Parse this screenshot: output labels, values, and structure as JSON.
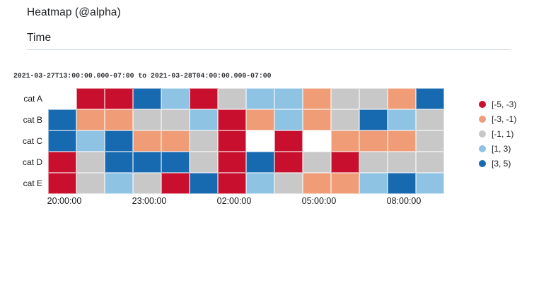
{
  "header": {
    "title": "Heatmap (@alpha)",
    "panel_title": "Time"
  },
  "chart_data": {
    "type": "heatmap",
    "title": "Time",
    "time_range_label": "2021-03-27T13:00:00.000-07:00 to 2021-03-28T04:00:00.000-07:00",
    "y_categories": [
      "cat A",
      "cat B",
      "cat C",
      "cat D",
      "cat E"
    ],
    "x_tick_labels": [
      "20:00:00",
      "23:00:00",
      "02:00:00",
      "05:00:00",
      "08:00:00"
    ],
    "x_tick_columns": [
      0,
      3,
      6,
      9,
      12
    ],
    "column_count": 14,
    "legend_position": "right",
    "legend": [
      {
        "label": "[-5, -3)",
        "color": "#c8102e"
      },
      {
        "label": "[-3, -1)",
        "color": "#f09d77"
      },
      {
        "label": "[-1, 1)",
        "color": "#c8c8c8"
      },
      {
        "label": "[1, 3)",
        "color": "#8fc3e4"
      },
      {
        "label": "[3, 5)",
        "color": "#1769b0"
      }
    ],
    "cells": [
      [
        null,
        0,
        0,
        4,
        3,
        0,
        2,
        3,
        3,
        1,
        2,
        2,
        1,
        4
      ],
      [
        4,
        1,
        1,
        2,
        2,
        3,
        0,
        1,
        3,
        1,
        2,
        4,
        3,
        2
      ],
      [
        4,
        3,
        4,
        1,
        1,
        2,
        0,
        null,
        0,
        null,
        1,
        1,
        1,
        2
      ],
      [
        0,
        2,
        4,
        4,
        4,
        2,
        0,
        4,
        0,
        2,
        0,
        2,
        2,
        2
      ],
      [
        0,
        2,
        3,
        2,
        0,
        4,
        0,
        3,
        2,
        1,
        1,
        3,
        4,
        3
      ]
    ]
  },
  "colors": {
    "divider": "#ccd4e0",
    "text": "#1c1e21"
  }
}
